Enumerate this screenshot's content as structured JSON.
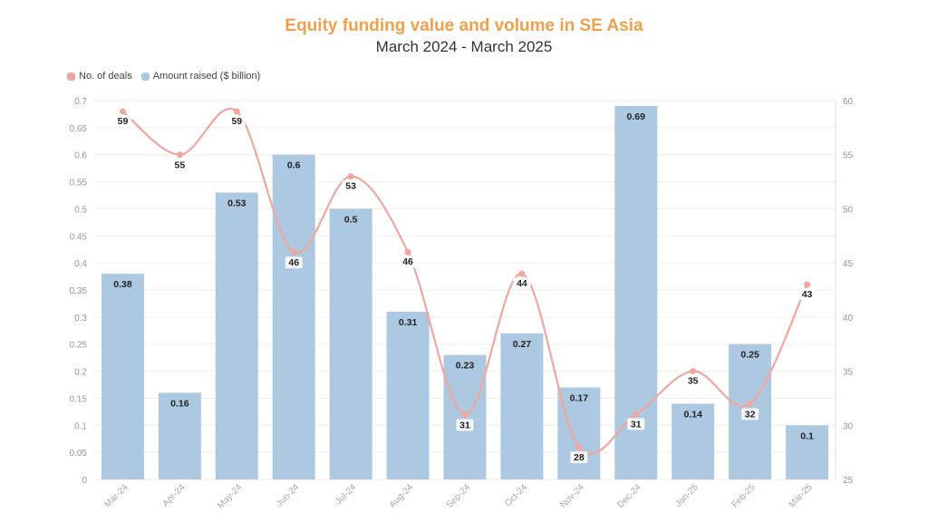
{
  "chart_data": {
    "type": "bar",
    "title": "Equity funding value and volume in SE Asia",
    "subtitle": "March 2024 - March 2025",
    "categories": [
      "Mar-24",
      "Apr-24",
      "May-24",
      "Jun-24",
      "Jul-24",
      "Aug-24",
      "Sep-24",
      "Oct-24",
      "Nov-24",
      "Dec-24",
      "Jan-25",
      "Feb-25",
      "Mar-25"
    ],
    "series": [
      {
        "name": "Amount raised ($ billion)",
        "type": "bar",
        "axis": "left",
        "color": "#adc9e1",
        "values": [
          0.38,
          0.16,
          0.53,
          0.6,
          0.5,
          0.31,
          0.23,
          0.27,
          0.17,
          0.69,
          0.14,
          0.25,
          0.1
        ]
      },
      {
        "name": "No. of deals",
        "type": "line",
        "axis": "right",
        "color": "#f2a6a0",
        "values": [
          59,
          55,
          59,
          46,
          53,
          46,
          31,
          44,
          28,
          31,
          35,
          32,
          43
        ]
      }
    ],
    "y_left": {
      "min": 0,
      "max": 0.7,
      "ticks": [
        "0",
        "0.05",
        "0.1",
        "0.15",
        "0.2",
        "0.25",
        "0.3",
        "0.35",
        "0.4",
        "0.45",
        "0.5",
        "0.55",
        "0.6",
        "0.65",
        "0.7"
      ]
    },
    "y_right": {
      "min": 25,
      "max": 60,
      "ticks": [
        "25",
        "30",
        "35",
        "40",
        "45",
        "50",
        "55",
        "60"
      ]
    },
    "legend_position": "top-left",
    "grid": true
  }
}
